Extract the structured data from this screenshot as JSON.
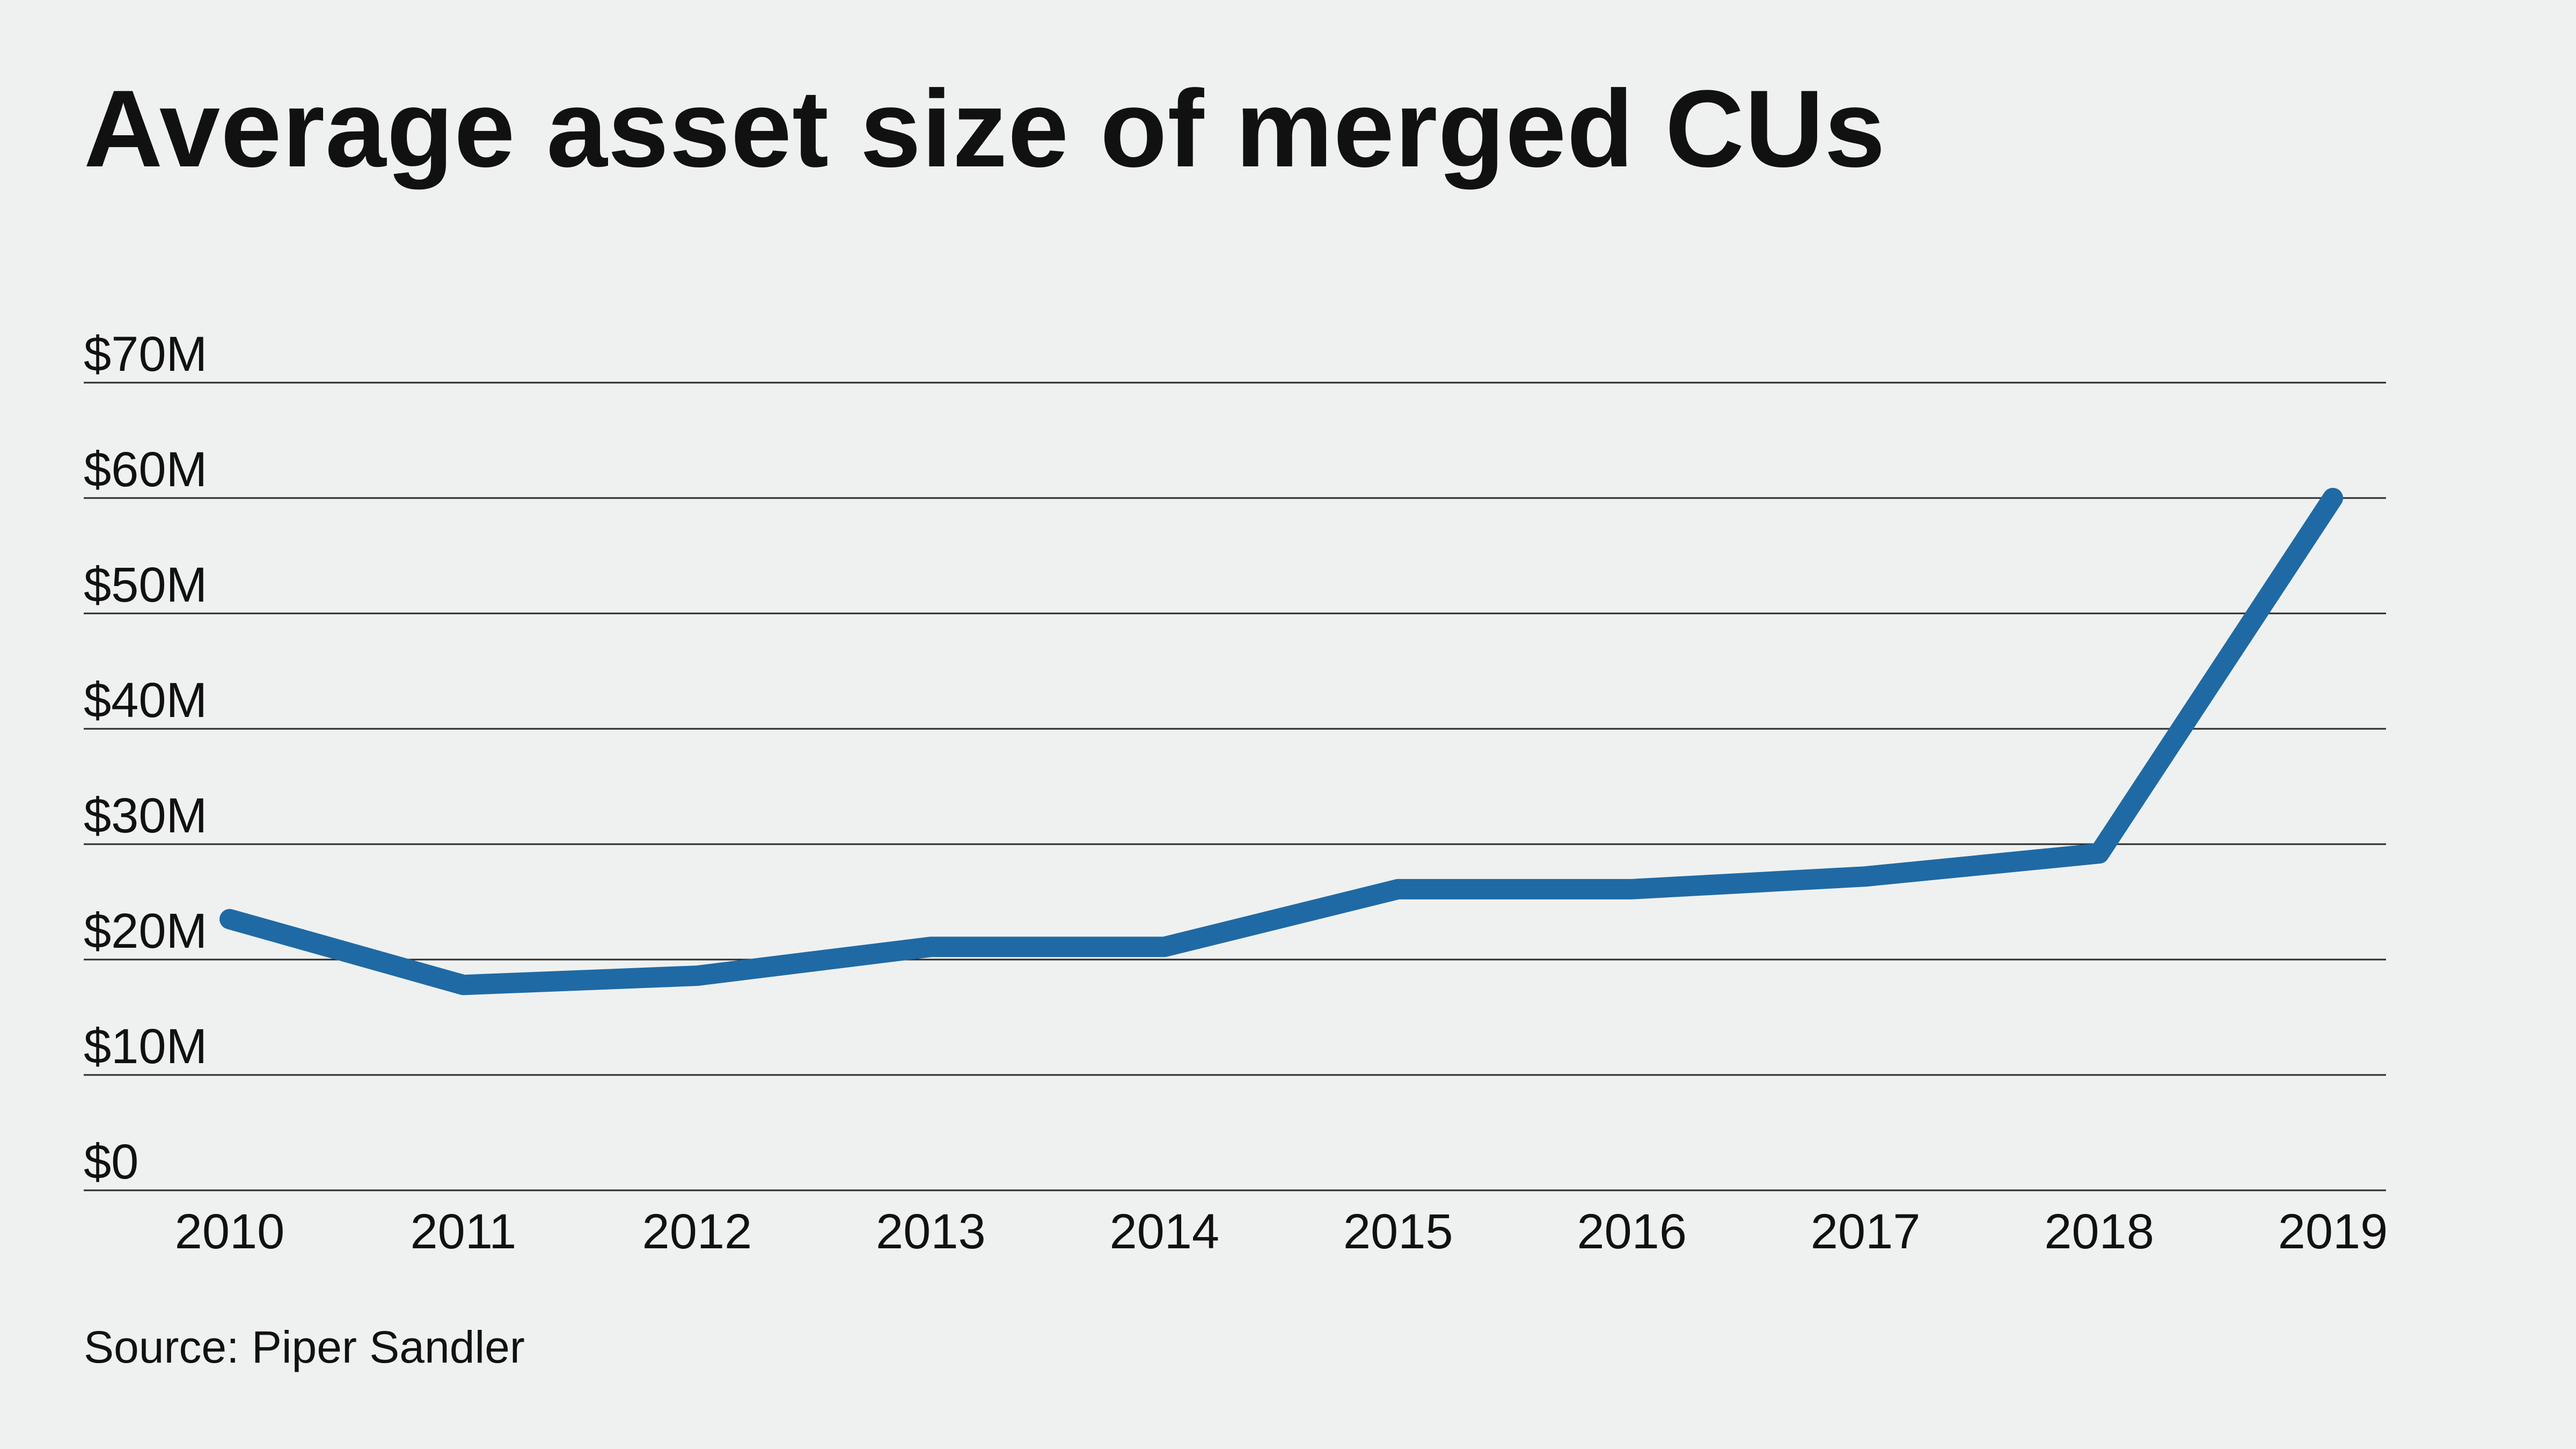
{
  "title": "Average asset size of merged CUs",
  "source": "Source: Piper Sandler",
  "colors": {
    "background": "#eff1f0",
    "line": "#1f6aa5",
    "grid": "#2a2a2a",
    "text": "#111111"
  },
  "chart_data": {
    "type": "line",
    "title": "Average asset size of merged CUs",
    "xlabel": "",
    "ylabel": "",
    "categories": [
      "2010",
      "2011",
      "2012",
      "2013",
      "2014",
      "2015",
      "2016",
      "2017",
      "2018",
      "2019"
    ],
    "series": [
      {
        "values": [
          23.5,
          17.8,
          18.6,
          21.1,
          21.1,
          26.1,
          26.1,
          27.2,
          29.2,
          60
        ]
      }
    ],
    "yticks": [
      0,
      10,
      20,
      30,
      40,
      50,
      60,
      70
    ],
    "ytick_labels": [
      "$0",
      "$10M",
      "$20M",
      "$30M",
      "$40M",
      "$50M",
      "$60M",
      "$70M"
    ],
    "ylim": [
      0,
      70
    ],
    "grid": "horizontal",
    "legend": "none"
  }
}
